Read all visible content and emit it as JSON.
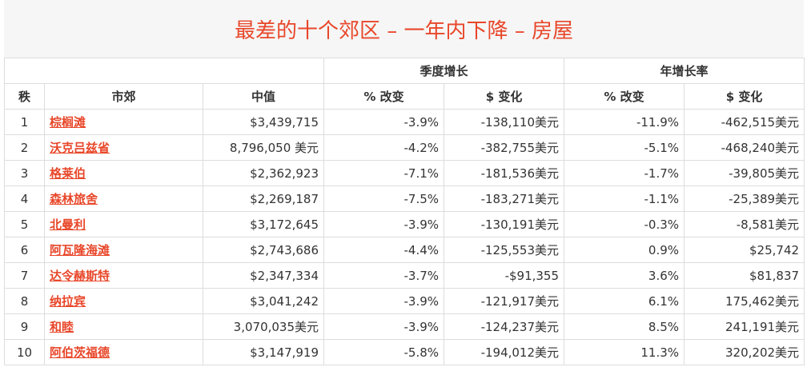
{
  "title": "最差的十个郊区 – 一年内下降 – 房屋",
  "table": {
    "groups": [
      "季度增长",
      "年增长率"
    ],
    "columns": [
      "秩",
      "市郊",
      "中值",
      "% 改变",
      "$ 变化",
      "% 改变",
      "$ 变化"
    ],
    "rows": [
      [
        "1",
        "棕榈滩",
        "$3,439,715",
        "-3.9%",
        "-138,110美元",
        "-11.9%",
        "-462,515美元"
      ],
      [
        "2",
        "沃克吕兹省",
        "8,796,050 美元",
        "-4.2%",
        "-382,755美元",
        "-5.1%",
        "-468,240美元"
      ],
      [
        "3",
        "格莱伯",
        "$2,362,923",
        "-7.1%",
        "-181,536美元",
        "-1.7%",
        "-39,805美元"
      ],
      [
        "4",
        "森林旅舍",
        "$2,269,187",
        "-7.5%",
        "-183,271美元",
        "-1.1%",
        "-25,389美元"
      ],
      [
        "5",
        "北曼利",
        "$3,172,645",
        "-3.9%",
        "-130,191美元",
        "-0.3%",
        "-8,581美元"
      ],
      [
        "6",
        "阿瓦隆海滩",
        "$2,743,686",
        "-4.4%",
        "-125,553美元",
        "0.9%",
        "$25,742"
      ],
      [
        "7",
        "达令赫斯特",
        "$2,347,334",
        "-3.7%",
        "-$91,355",
        "3.6%",
        "$81,837"
      ],
      [
        "8",
        "纳拉宾",
        "$3,041,242",
        "-3.9%",
        "-121,917美元",
        "6.1%",
        "175,462美元"
      ],
      [
        "9",
        "和睦",
        "3,070,035美元",
        "-3.9%",
        "-124,237美元",
        "8.5%",
        "241,191美元"
      ],
      [
        "10",
        "阿伯茨福德",
        "$3,147,919",
        "-5.8%",
        "-194,012美元",
        "11.3%",
        "320,202美元"
      ]
    ]
  }
}
